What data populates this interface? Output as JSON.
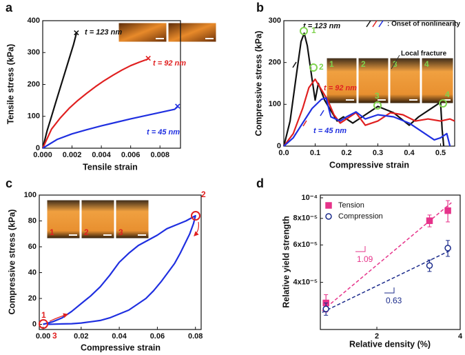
{
  "chart_data": [
    {
      "type": "line",
      "label": "a",
      "xlabel": "Tensile strain",
      "ylabel": "Tensile stress (kPa)",
      "xlim": [
        0,
        0.0094
      ],
      "ylim": [
        0,
        400
      ],
      "xticks": [
        {
          "value": 0,
          "label": "0.000"
        },
        0.002,
        0.004,
        0.006,
        0.008
      ],
      "yticks": [
        0,
        100,
        200,
        300,
        400
      ],
      "end_marker": "×",
      "series": [
        {
          "name": "t = 123 nm",
          "color": "#111111",
          "x": [
            0,
            0.0003,
            0.0006,
            0.0009,
            0.0012,
            0.0015,
            0.0018,
            0.0021,
            0.0023
          ],
          "values": [
            0,
            55,
            100,
            145,
            190,
            235,
            280,
            325,
            360
          ]
        },
        {
          "name": "t = 92 nm",
          "color": "#e02020",
          "x": [
            0,
            0.0006,
            0.0012,
            0.0018,
            0.0024,
            0.003,
            0.0036,
            0.0042,
            0.0048,
            0.0054,
            0.006,
            0.0066,
            0.0072
          ],
          "values": [
            0,
            60,
            95,
            125,
            150,
            172,
            193,
            212,
            229,
            245,
            259,
            270,
            280
          ]
        },
        {
          "name": "t = 45 nm",
          "color": "#1f2fe0",
          "x": [
            0,
            0.001,
            0.002,
            0.003,
            0.004,
            0.005,
            0.006,
            0.007,
            0.008,
            0.009,
            0.0092
          ],
          "values": [
            0,
            28,
            45,
            58,
            70,
            81,
            92,
            102,
            112,
            122,
            130
          ]
        }
      ]
    },
    {
      "type": "line",
      "label": "b",
      "xlabel": "Compressive strain",
      "ylabel": "Compressive stress (kPa)",
      "xlim": [
        0,
        0.545
      ],
      "ylim": [
        0,
        300
      ],
      "xticks": [
        {
          "value": 0,
          "label": "0.0"
        },
        0.1,
        0.2,
        0.3,
        0.4,
        0.5
      ],
      "yticks": [
        0,
        100,
        200,
        300
      ],
      "annotations": [
        "1",
        "2",
        "3",
        "4",
        ": Onset of nonlinearity",
        "Local fracture"
      ],
      "inset_labels": [
        "1",
        "2",
        "3",
        "4"
      ],
      "series": [
        {
          "name": "t = 123 nm",
          "color": "#111111",
          "x": [
            0,
            0.02,
            0.04,
            0.055,
            0.065,
            0.075,
            0.09,
            0.1,
            0.11,
            0.13,
            0.15,
            0.17,
            0.19,
            0.22,
            0.25,
            0.3,
            0.35,
            0.4,
            0.43,
            0.47,
            0.5,
            0.505,
            0.51
          ],
          "values": [
            0,
            60,
            170,
            250,
            270,
            240,
            160,
            110,
            150,
            110,
            85,
            60,
            70,
            55,
            70,
            95,
            80,
            50,
            70,
            90,
            105,
            40,
            0
          ]
        },
        {
          "name": "t = 92 nm",
          "color": "#e02020",
          "x": [
            0,
            0.03,
            0.06,
            0.08,
            0.1,
            0.12,
            0.14,
            0.16,
            0.18,
            0.2,
            0.23,
            0.26,
            0.3,
            0.34,
            0.38,
            0.42,
            0.46,
            0.5,
            0.53,
            0.545
          ],
          "values": [
            0,
            30,
            90,
            140,
            160,
            135,
            110,
            75,
            55,
            65,
            80,
            50,
            60,
            80,
            75,
            60,
            65,
            60,
            65,
            60
          ]
        },
        {
          "name": "t = 45 nm",
          "color": "#1f2fe0",
          "x": [
            0,
            0.03,
            0.06,
            0.09,
            0.12,
            0.135,
            0.15,
            0.18,
            0.2,
            0.23,
            0.26,
            0.3,
            0.35,
            0.4,
            0.45,
            0.48,
            0.5,
            0.52,
            0.53
          ],
          "values": [
            0,
            20,
            55,
            90,
            112,
            115,
            70,
            60,
            70,
            82,
            65,
            75,
            70,
            55,
            30,
            15,
            20,
            30,
            0
          ]
        }
      ]
    },
    {
      "type": "line",
      "label": "c",
      "xlabel": "Compressive strain",
      "ylabel": "Compressive stress (kPa)",
      "xlim": [
        -0.002,
        0.083
      ],
      "ylim": [
        -4,
        100
      ],
      "xticks": [
        {
          "value": 0,
          "label": "0.00"
        },
        0.02,
        0.04,
        0.06,
        0.08
      ],
      "yticks": [
        0,
        20,
        40,
        60,
        80,
        100
      ],
      "annotations": [
        "1",
        "2",
        "3"
      ],
      "inset_labels": [
        "1",
        "2",
        "3"
      ],
      "series": [
        {
          "color": "#1f2fe0",
          "x": [
            0,
            0.005,
            0.01,
            0.015,
            0.02,
            0.025,
            0.03,
            0.035,
            0.04,
            0.045,
            0.05,
            0.055,
            0.06,
            0.065,
            0.07,
            0.075,
            0.08,
            0.079,
            0.077,
            0.075,
            0.072,
            0.069,
            0.066,
            0.062,
            0.058,
            0.054,
            0.05,
            0.045,
            0.04,
            0.035,
            0.03,
            0.025,
            0.02,
            0.015,
            0.01,
            0.005,
            0.002
          ],
          "values": [
            0,
            2,
            5,
            10,
            16,
            22,
            29,
            38,
            48,
            55,
            61,
            65,
            69,
            74,
            77,
            80,
            84,
            78,
            70,
            64,
            55,
            47,
            41,
            33,
            26,
            20,
            16,
            11,
            8,
            5,
            3,
            2,
            1,
            0.5,
            0.3,
            0.1,
            0
          ]
        }
      ]
    },
    {
      "type": "scatter",
      "label": "d",
      "xlabel": "Relative density (%)",
      "ylabel": "Relative yield strength",
      "xlog": true,
      "ylog": true,
      "xlim": [
        1.25,
        4
      ],
      "ylim": [
        2.4e-05,
        0.000103
      ],
      "xticks": [
        2,
        4
      ],
      "yticks": [
        {
          "value": 4e-05,
          "label": "4x10⁻⁵"
        },
        {
          "value": 6e-05,
          "label": "6x10⁻⁵"
        },
        {
          "value": 8e-05,
          "label": "8x10⁻⁵"
        },
        {
          "value": 0.0001,
          "label": "10⁻⁴"
        }
      ],
      "legend": "top-left",
      "series": [
        {
          "name": "Tension",
          "color": "#e6338a",
          "marker": "square",
          "filled": true,
          "slope": 1.09,
          "x": [
            1.31,
            3.1,
            3.61
          ],
          "values": [
            3.2e-05,
            7.8e-05,
            8.7e-05
          ],
          "errors": [
            3e-06,
            5e-06,
            1e-05
          ]
        },
        {
          "name": "Compression",
          "color": "#1a2a8a",
          "marker": "circle",
          "filled": false,
          "slope": 0.63,
          "x": [
            1.31,
            3.1,
            3.61
          ],
          "values": [
            3e-05,
            4.8e-05,
            5.8e-05
          ],
          "errors": [
            2e-06,
            3e-06,
            5e-06
          ]
        }
      ]
    }
  ]
}
